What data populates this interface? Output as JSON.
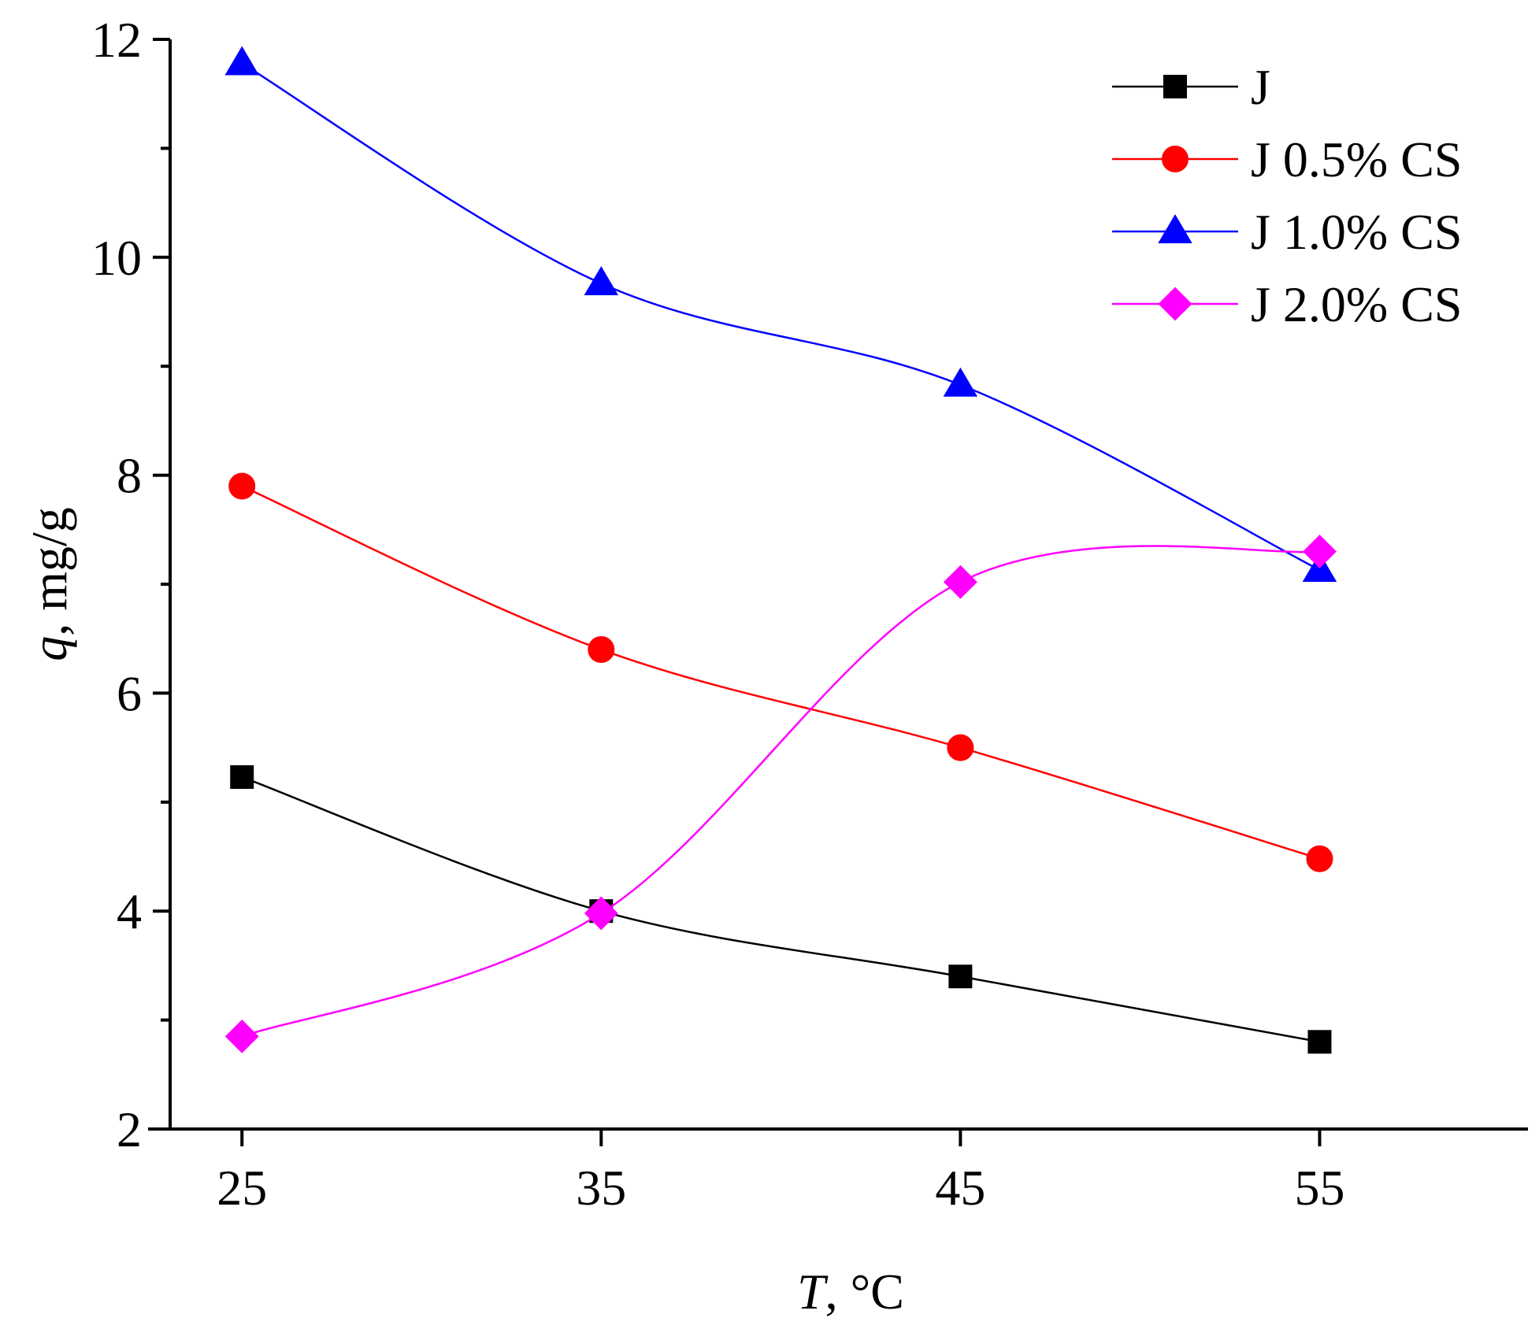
{
  "chart_data": {
    "type": "line",
    "title": "",
    "x": [
      25,
      35,
      45,
      55
    ],
    "xlim": [
      23,
      60.8
    ],
    "ylim": [
      2,
      12
    ],
    "xticks": [
      25,
      35,
      45,
      55
    ],
    "yticks": [
      2,
      4,
      6,
      8,
      10,
      12
    ],
    "xlabel_italic": "T",
    "xlabel_rest": ", °C",
    "ylabel_italic": "q",
    "ylabel_rest": ", mg/g",
    "legend_position": "top-right",
    "grid": false,
    "series": [
      {
        "name": "J",
        "color": "#000000",
        "marker": "square",
        "values": [
          5.23,
          4.0,
          3.4,
          2.8
        ]
      },
      {
        "name": "J 0.5% CS",
        "color": "#ff0000",
        "marker": "circle",
        "values": [
          7.9,
          6.4,
          5.5,
          4.48
        ]
      },
      {
        "name": "J 1.0% CS",
        "color": "#0000ff",
        "marker": "triangle",
        "values": [
          11.78,
          9.76,
          8.83,
          7.13
        ]
      },
      {
        "name": "J 2.0% CS",
        "color": "#ff00ff",
        "marker": "diamond",
        "values": [
          2.85,
          3.98,
          7.02,
          7.3
        ]
      }
    ]
  }
}
